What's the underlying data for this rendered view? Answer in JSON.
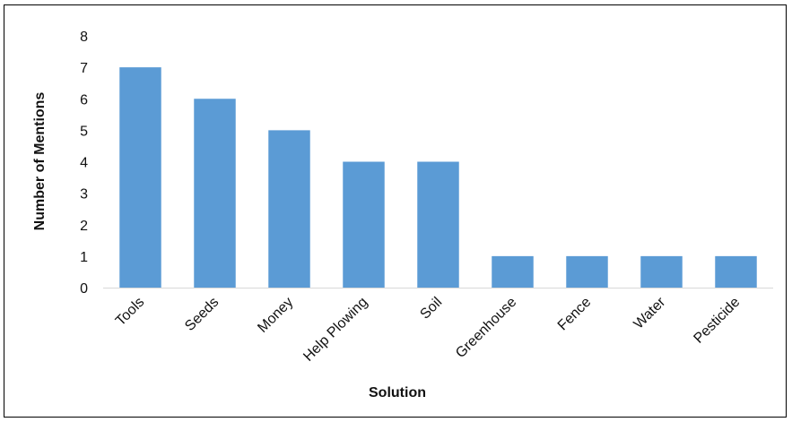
{
  "chart_data": {
    "type": "bar",
    "title": "",
    "xlabel": "Solution",
    "ylabel": "Number of Mentions",
    "categories": [
      "Tools",
      "Seeds",
      "Money",
      "Help Plowing",
      "Soil",
      "Greenhouse",
      "Fence",
      "Water",
      "Pesticide"
    ],
    "values": [
      7,
      6,
      5,
      4,
      4,
      1,
      1,
      1,
      1
    ],
    "ylim": [
      0,
      8
    ],
    "yticks": [
      0,
      1,
      2,
      3,
      4,
      5,
      6,
      7,
      8
    ],
    "grid": false,
    "legend": "none",
    "bar_color": "#5b9bd5",
    "axis_color": "#d9d9d9"
  }
}
